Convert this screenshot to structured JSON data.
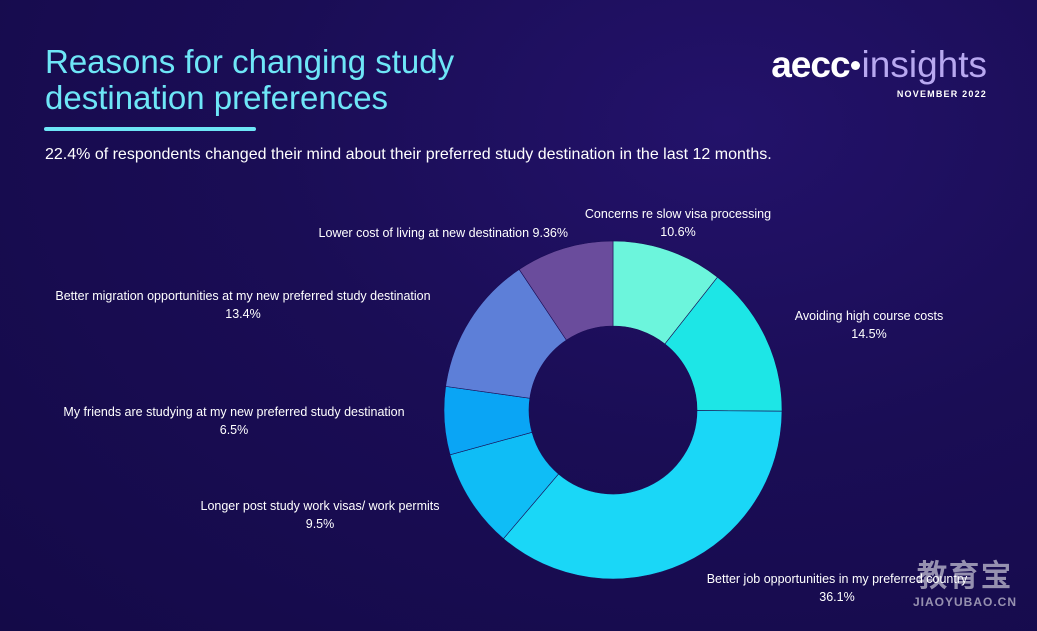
{
  "header": {
    "title_line1": "Reasons for changing study",
    "title_line2": "destination preferences",
    "subtitle": "22.4% of respondents changed their mind about their preferred study destination in the last 12 months."
  },
  "logo": {
    "brand": "aecc",
    "product": "insights",
    "date": "NOVEMBER 2022"
  },
  "watermark": {
    "cn": "教育宝",
    "en": "JIAOYUBAO.CN"
  },
  "chart_data": {
    "type": "pie",
    "donut": true,
    "title": "Reasons for changing study destination preferences",
    "slices": [
      {
        "label": "Concerns re slow visa processing",
        "value": 10.6,
        "display": "10.6%",
        "color": "#6cf5dc"
      },
      {
        "label": "Avoiding high course costs",
        "value": 14.5,
        "display": "14.5%",
        "color": "#1de6e6"
      },
      {
        "label": "Better job opportunities in my preferred country",
        "value": 36.1,
        "display": "36.1%",
        "color": "#1ad7f7"
      },
      {
        "label": "Longer post study work visas/ work permits",
        "value": 9.5,
        "display": "9.5%",
        "color": "#0fbdf6"
      },
      {
        "label": "My friends are studying at my new preferred study destination",
        "value": 6.5,
        "display": "6.5%",
        "color": "#0aa5f5"
      },
      {
        "label": "Better migration opportunities at my new preferred study destination",
        "value": 13.4,
        "display": "13.4%",
        "color": "#5d7fd8"
      },
      {
        "label": "Lower cost of living at new destination",
        "value": 9.36,
        "display": "9.36%",
        "color": "#6a4c9c"
      }
    ]
  }
}
